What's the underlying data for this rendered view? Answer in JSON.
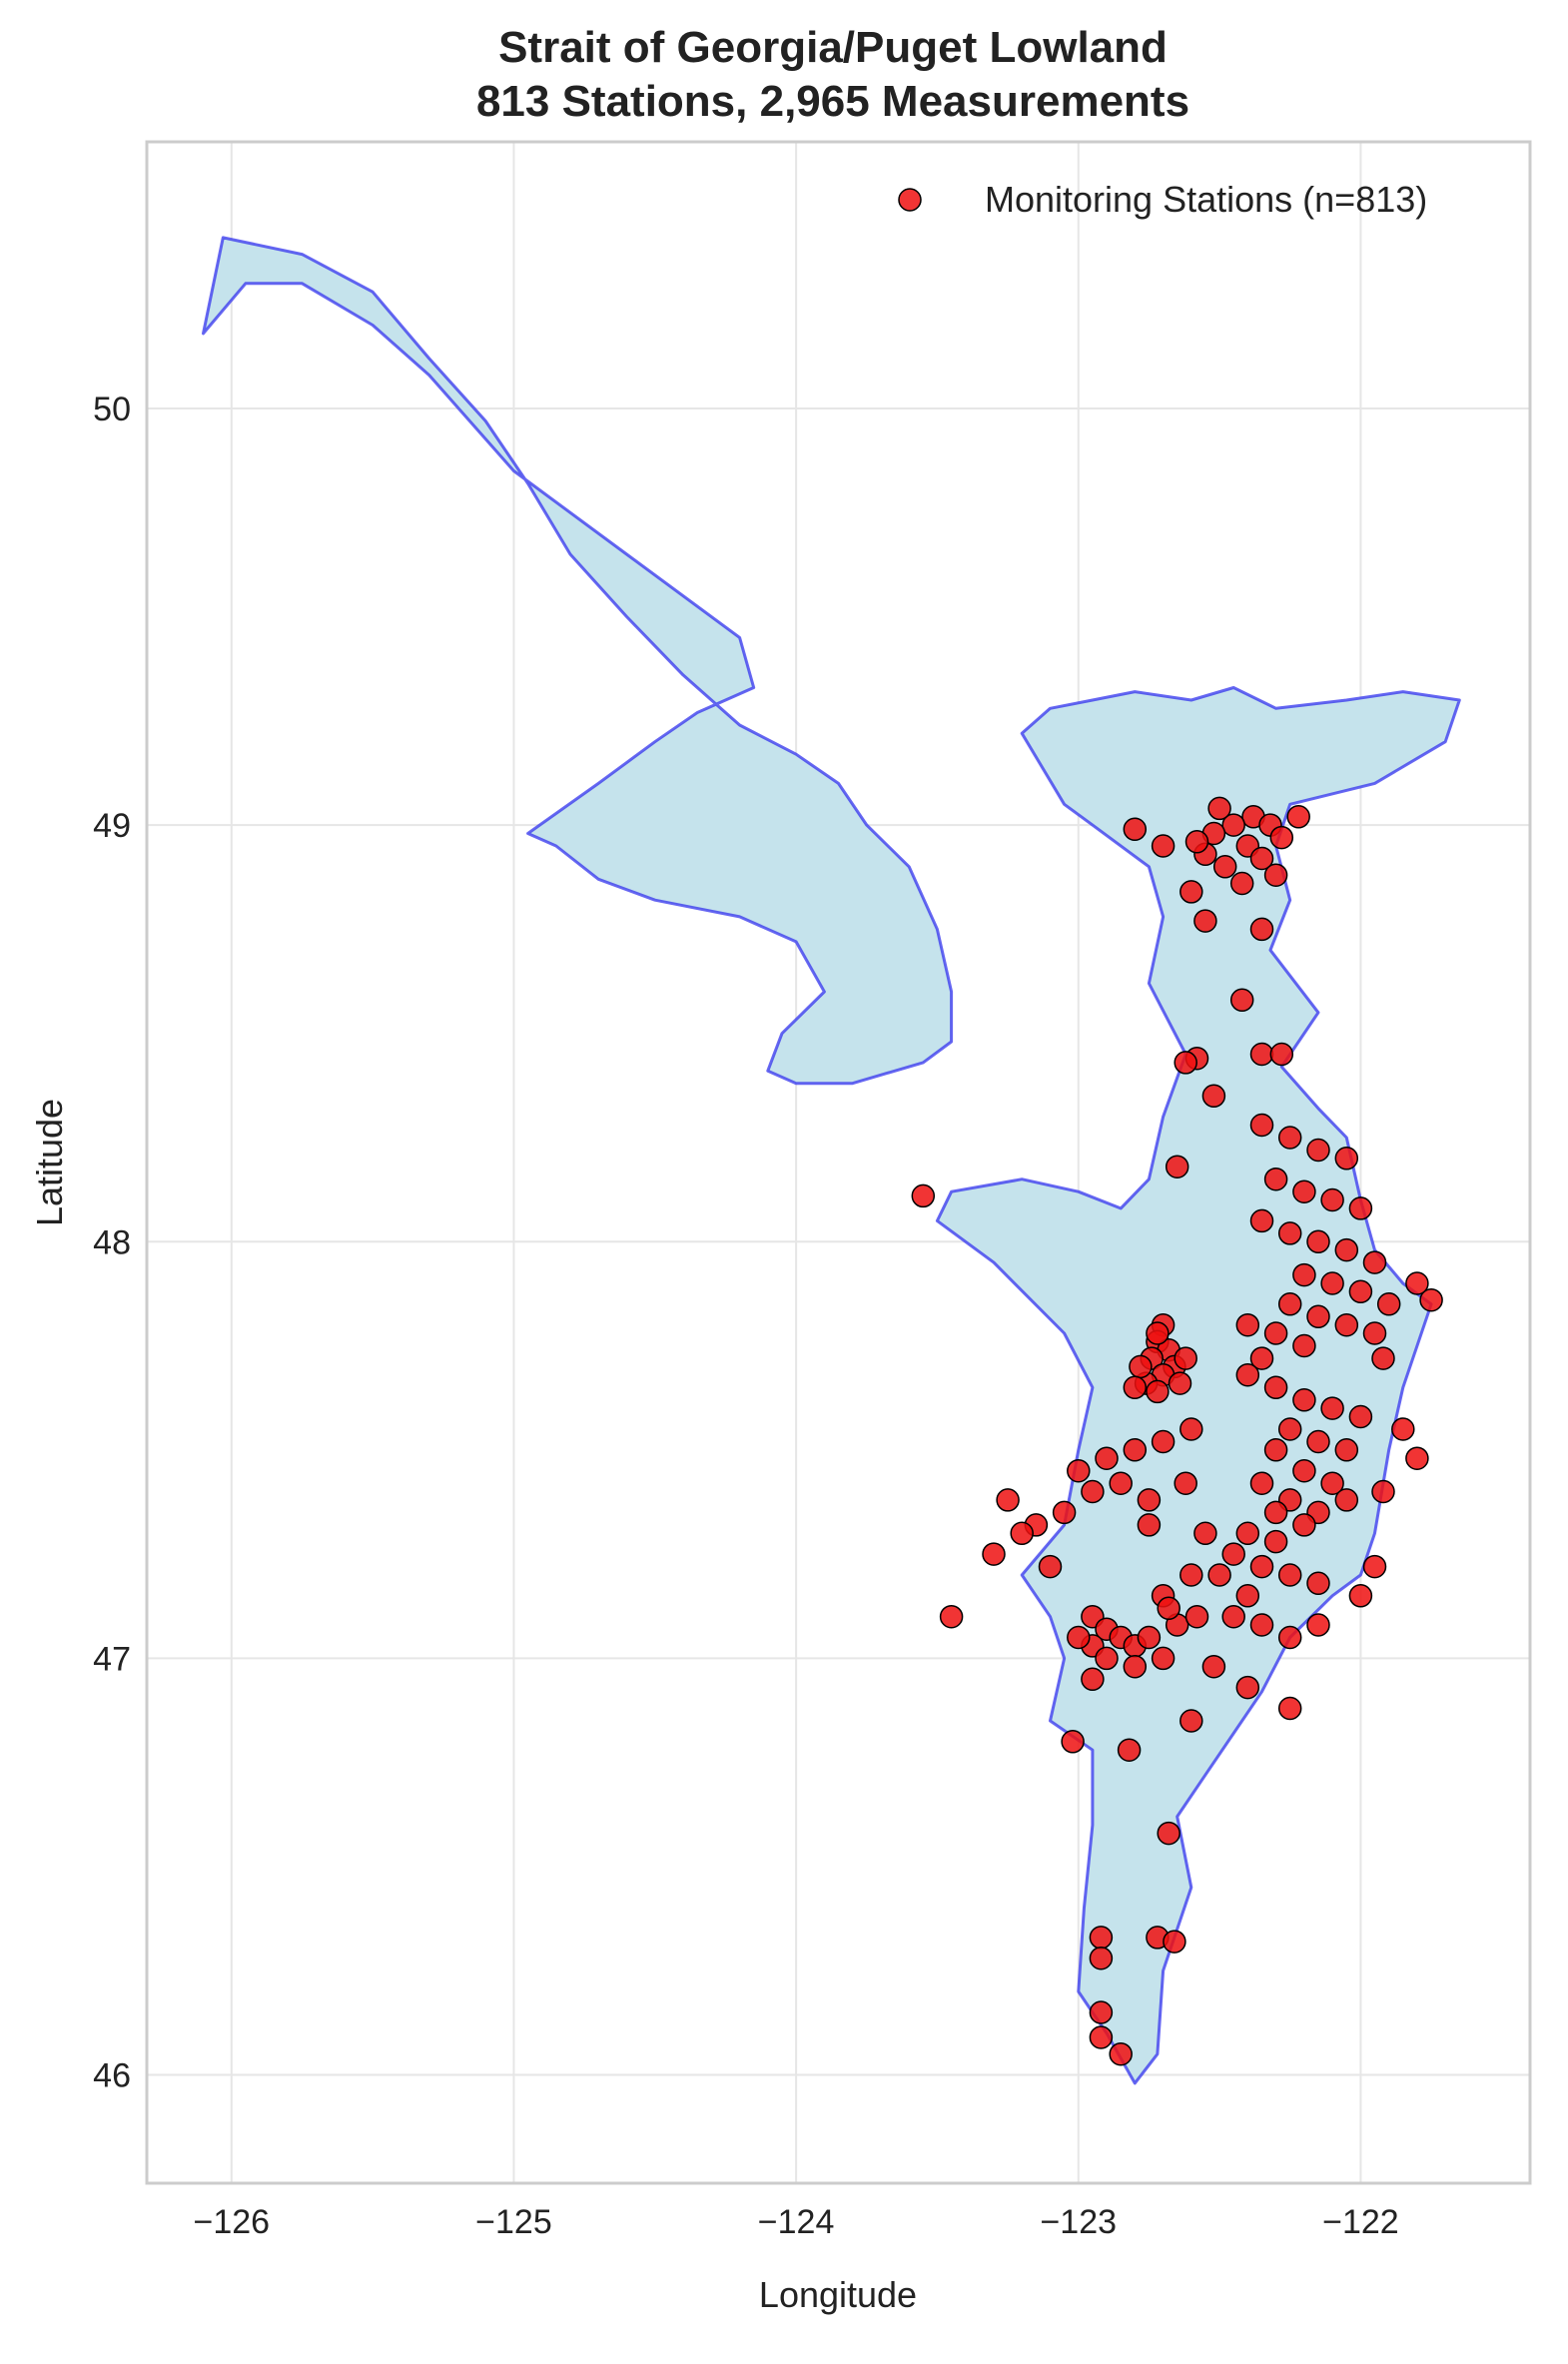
{
  "chart_data": {
    "type": "scatter",
    "title": "Strait of Georgia/Puget Lowland",
    "subtitle": "813 Stations, 2,965 Measurements",
    "xlabel": "Longitude",
    "ylabel": "Latitude",
    "xlim": [
      -126.3,
      -121.4
    ],
    "ylim": [
      45.74,
      50.64
    ],
    "x_ticks": [
      -126,
      -125,
      -124,
      -123,
      -122
    ],
    "x_tick_labels": [
      "−126",
      "−125",
      "−124",
      "−123",
      "−122"
    ],
    "y_ticks": [
      46,
      47,
      48,
      49,
      50
    ],
    "y_tick_labels": [
      "46",
      "47",
      "48",
      "49",
      "50"
    ],
    "grid": true,
    "legend": {
      "position": "top-right",
      "label": "Monitoring Stations (n=813)"
    },
    "colors": {
      "region_fill": "#c5e3ec",
      "region_outline": "#3333ee",
      "station_fill": "#ee1111",
      "station_edge": "#000000",
      "grid": "#e6e6e6",
      "frame": "#cccccc"
    },
    "region_outline": [
      [
        -126.03,
        50.41
      ],
      [
        -125.75,
        50.37
      ],
      [
        -125.5,
        50.28
      ],
      [
        -125.3,
        50.12
      ],
      [
        -125.1,
        49.97
      ],
      [
        -124.95,
        49.82
      ],
      [
        -124.8,
        49.65
      ],
      [
        -124.6,
        49.5
      ],
      [
        -124.4,
        49.36
      ],
      [
        -124.2,
        49.24
      ],
      [
        -124.0,
        49.17
      ],
      [
        -123.85,
        49.1
      ],
      [
        -123.75,
        49.0
      ],
      [
        -123.6,
        48.9
      ],
      [
        -123.5,
        48.75
      ],
      [
        -123.45,
        48.6
      ],
      [
        -123.45,
        48.48
      ],
      [
        -123.55,
        48.43
      ],
      [
        -123.8,
        48.38
      ],
      [
        -124.0,
        48.38
      ],
      [
        -124.1,
        48.41
      ],
      [
        -124.05,
        48.5
      ],
      [
        -123.9,
        48.6
      ],
      [
        -124.0,
        48.72
      ],
      [
        -124.2,
        48.78
      ],
      [
        -124.5,
        48.82
      ],
      [
        -124.7,
        48.87
      ],
      [
        -124.85,
        48.95
      ],
      [
        -124.95,
        48.98
      ],
      [
        -124.7,
        49.1
      ],
      [
        -124.5,
        49.2
      ],
      [
        -124.35,
        49.27
      ],
      [
        -124.15,
        49.33
      ],
      [
        -124.2,
        49.45
      ],
      [
        -124.6,
        49.65
      ],
      [
        -125.0,
        49.85
      ],
      [
        -125.3,
        50.08
      ],
      [
        -125.5,
        50.2
      ],
      [
        -125.75,
        50.3
      ],
      [
        -125.95,
        50.3
      ],
      [
        -126.1,
        50.18
      ],
      [
        -126.03,
        50.41
      ]
    ],
    "mainland_outline": [
      [
        -123.2,
        49.22
      ],
      [
        -123.1,
        49.28
      ],
      [
        -122.95,
        49.3
      ],
      [
        -122.8,
        49.32
      ],
      [
        -122.6,
        49.3
      ],
      [
        -122.45,
        49.33
      ],
      [
        -122.3,
        49.28
      ],
      [
        -122.05,
        49.3
      ],
      [
        -121.85,
        49.32
      ],
      [
        -121.65,
        49.3
      ],
      [
        -121.7,
        49.2
      ],
      [
        -121.95,
        49.1
      ],
      [
        -122.25,
        49.05
      ],
      [
        -122.3,
        48.95
      ],
      [
        -122.25,
        48.82
      ],
      [
        -122.32,
        48.7
      ],
      [
        -122.15,
        48.55
      ],
      [
        -122.28,
        48.42
      ],
      [
        -122.15,
        48.32
      ],
      [
        -122.05,
        48.25
      ],
      [
        -122.0,
        48.1
      ],
      [
        -121.95,
        47.98
      ],
      [
        -121.85,
        47.9
      ],
      [
        -121.75,
        47.85
      ],
      [
        -121.85,
        47.65
      ],
      [
        -121.9,
        47.5
      ],
      [
        -121.95,
        47.3
      ],
      [
        -122.0,
        47.2
      ],
      [
        -122.1,
        47.15
      ],
      [
        -122.25,
        47.05
      ],
      [
        -122.35,
        46.92
      ],
      [
        -122.45,
        46.82
      ],
      [
        -122.55,
        46.72
      ],
      [
        -122.65,
        46.62
      ],
      [
        -122.6,
        46.45
      ],
      [
        -122.7,
        46.25
      ],
      [
        -122.72,
        46.05
      ],
      [
        -122.8,
        45.98
      ],
      [
        -122.9,
        46.1
      ],
      [
        -123.0,
        46.2
      ],
      [
        -122.98,
        46.4
      ],
      [
        -122.95,
        46.6
      ],
      [
        -122.95,
        46.78
      ],
      [
        -123.1,
        46.85
      ],
      [
        -123.05,
        47.0
      ],
      [
        -123.1,
        47.1
      ],
      [
        -123.2,
        47.2
      ],
      [
        -123.05,
        47.32
      ],
      [
        -123.0,
        47.5
      ],
      [
        -122.95,
        47.65
      ],
      [
        -123.05,
        47.78
      ],
      [
        -123.3,
        47.95
      ],
      [
        -123.5,
        48.05
      ],
      [
        -123.45,
        48.12
      ],
      [
        -123.2,
        48.15
      ],
      [
        -123.0,
        48.12
      ],
      [
        -122.85,
        48.08
      ],
      [
        -122.75,
        48.15
      ],
      [
        -122.7,
        48.3
      ],
      [
        -122.62,
        48.45
      ],
      [
        -122.75,
        48.62
      ],
      [
        -122.7,
        48.78
      ],
      [
        -122.75,
        48.9
      ],
      [
        -122.95,
        49.0
      ],
      [
        -123.05,
        49.05
      ],
      [
        -123.2,
        49.22
      ]
    ],
    "series": [
      {
        "name": "Monitoring Stations (n=813)",
        "points": [
          [
            -122.38,
            49.02
          ],
          [
            -122.32,
            49.0
          ],
          [
            -122.45,
            49.0
          ],
          [
            -122.52,
            48.98
          ],
          [
            -122.28,
            48.97
          ],
          [
            -122.4,
            48.95
          ],
          [
            -122.55,
            48.93
          ],
          [
            -122.35,
            48.92
          ],
          [
            -122.48,
            48.9
          ],
          [
            -122.3,
            48.88
          ],
          [
            -122.42,
            48.86
          ],
          [
            -122.6,
            48.84
          ],
          [
            -122.22,
            49.02
          ],
          [
            -122.58,
            48.96
          ],
          [
            -122.5,
            49.04
          ],
          [
            -122.8,
            48.99
          ],
          [
            -122.7,
            48.95
          ],
          [
            -122.35,
            48.75
          ],
          [
            -122.55,
            48.77
          ],
          [
            -122.42,
            48.58
          ],
          [
            -122.58,
            48.44
          ],
          [
            -122.62,
            48.43
          ],
          [
            -122.35,
            48.45
          ],
          [
            -122.28,
            48.45
          ],
          [
            -122.52,
            48.35
          ],
          [
            -122.35,
            48.28
          ],
          [
            -122.25,
            48.25
          ],
          [
            -122.15,
            48.22
          ],
          [
            -122.05,
            48.2
          ],
          [
            -122.3,
            48.15
          ],
          [
            -122.2,
            48.12
          ],
          [
            -122.1,
            48.1
          ],
          [
            -122.0,
            48.08
          ],
          [
            -122.35,
            48.05
          ],
          [
            -122.25,
            48.02
          ],
          [
            -122.15,
            48.0
          ],
          [
            -122.05,
            47.98
          ],
          [
            -121.95,
            47.95
          ],
          [
            -122.2,
            47.92
          ],
          [
            -122.1,
            47.9
          ],
          [
            -122.0,
            47.88
          ],
          [
            -121.9,
            47.85
          ],
          [
            -122.25,
            47.85
          ],
          [
            -122.15,
            47.82
          ],
          [
            -122.05,
            47.8
          ],
          [
            -121.95,
            47.78
          ],
          [
            -122.3,
            47.78
          ],
          [
            -122.2,
            47.75
          ],
          [
            -121.92,
            47.72
          ],
          [
            -122.4,
            47.8
          ],
          [
            -122.65,
            48.18
          ],
          [
            -123.55,
            48.11
          ],
          [
            -121.75,
            47.86
          ],
          [
            -121.8,
            47.9
          ],
          [
            -122.7,
            47.8
          ],
          [
            -122.72,
            47.76
          ],
          [
            -122.68,
            47.74
          ],
          [
            -122.74,
            47.72
          ],
          [
            -122.66,
            47.7
          ],
          [
            -122.7,
            47.68
          ],
          [
            -122.76,
            47.66
          ],
          [
            -122.64,
            47.66
          ],
          [
            -122.72,
            47.78
          ],
          [
            -122.78,
            47.7
          ],
          [
            -122.62,
            47.72
          ],
          [
            -122.8,
            47.65
          ],
          [
            -122.72,
            47.64
          ],
          [
            -122.35,
            47.72
          ],
          [
            -122.4,
            47.68
          ],
          [
            -122.3,
            47.65
          ],
          [
            -122.2,
            47.62
          ],
          [
            -122.1,
            47.6
          ],
          [
            -122.0,
            47.58
          ],
          [
            -122.25,
            47.55
          ],
          [
            -122.15,
            47.52
          ],
          [
            -122.05,
            47.5
          ],
          [
            -122.3,
            47.5
          ],
          [
            -122.2,
            47.45
          ],
          [
            -122.1,
            47.42
          ],
          [
            -122.35,
            47.42
          ],
          [
            -122.25,
            47.38
          ],
          [
            -122.15,
            47.35
          ],
          [
            -122.05,
            47.38
          ],
          [
            -122.3,
            47.35
          ],
          [
            -122.2,
            47.32
          ],
          [
            -122.4,
            47.3
          ],
          [
            -122.3,
            47.28
          ],
          [
            -122.45,
            47.25
          ],
          [
            -122.35,
            47.22
          ],
          [
            -122.25,
            47.2
          ],
          [
            -122.15,
            47.18
          ],
          [
            -122.4,
            47.15
          ],
          [
            -122.5,
            47.2
          ],
          [
            -122.45,
            47.1
          ],
          [
            -122.35,
            47.08
          ],
          [
            -122.25,
            47.05
          ],
          [
            -122.15,
            47.08
          ],
          [
            -122.0,
            47.15
          ],
          [
            -121.95,
            47.22
          ],
          [
            -121.8,
            47.48
          ],
          [
            -121.85,
            47.55
          ],
          [
            -121.92,
            47.4
          ],
          [
            -122.6,
            47.55
          ],
          [
            -122.7,
            47.52
          ],
          [
            -122.8,
            47.5
          ],
          [
            -122.9,
            47.48
          ],
          [
            -123.0,
            47.45
          ],
          [
            -122.85,
            47.42
          ],
          [
            -122.95,
            47.4
          ],
          [
            -123.05,
            47.35
          ],
          [
            -123.15,
            47.32
          ],
          [
            -123.25,
            47.38
          ],
          [
            -123.2,
            47.3
          ],
          [
            -123.3,
            47.25
          ],
          [
            -123.45,
            47.1
          ],
          [
            -123.1,
            47.22
          ],
          [
            -122.75,
            47.38
          ],
          [
            -122.75,
            47.32
          ],
          [
            -122.62,
            47.42
          ],
          [
            -122.55,
            47.3
          ],
          [
            -122.6,
            47.2
          ],
          [
            -122.95,
            47.1
          ],
          [
            -122.9,
            47.07
          ],
          [
            -122.85,
            47.05
          ],
          [
            -122.8,
            47.03
          ],
          [
            -122.75,
            47.05
          ],
          [
            -122.95,
            47.03
          ],
          [
            -123.0,
            47.05
          ],
          [
            -122.9,
            47.0
          ],
          [
            -122.8,
            46.98
          ],
          [
            -122.7,
            47.0
          ],
          [
            -122.65,
            47.08
          ],
          [
            -122.7,
            47.15
          ],
          [
            -122.58,
            47.1
          ],
          [
            -122.52,
            46.98
          ],
          [
            -122.4,
            46.93
          ],
          [
            -122.25,
            46.88
          ],
          [
            -122.6,
            46.85
          ],
          [
            -122.95,
            46.95
          ],
          [
            -122.68,
            47.12
          ],
          [
            -123.02,
            46.8
          ],
          [
            -122.82,
            46.78
          ],
          [
            -122.68,
            46.58
          ],
          [
            -122.92,
            46.33
          ],
          [
            -122.72,
            46.33
          ],
          [
            -122.92,
            46.28
          ],
          [
            -122.92,
            46.15
          ],
          [
            -122.92,
            46.09
          ],
          [
            -122.85,
            46.05
          ],
          [
            -122.66,
            46.32
          ]
        ]
      }
    ]
  }
}
